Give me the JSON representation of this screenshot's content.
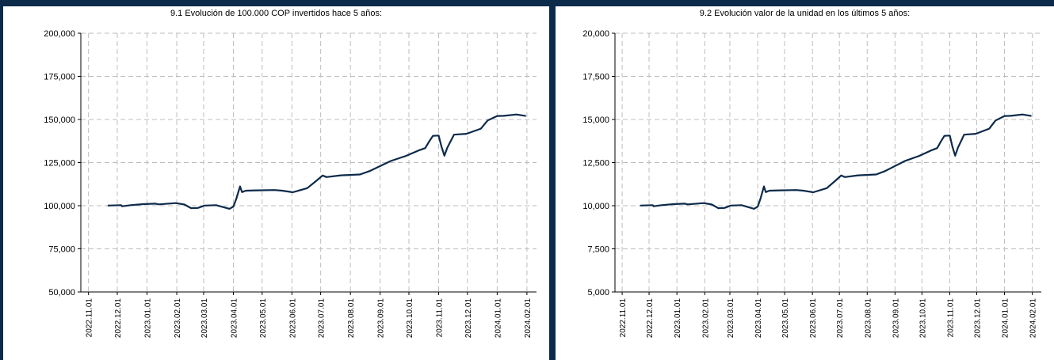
{
  "colors": {
    "frame": "#0c2a4a",
    "series": "#0c2a4a",
    "grid": "#bdbdbd"
  },
  "chart_data": [
    {
      "type": "line",
      "title": "9.1 Evolución de 100.000 COP invertidos hace 5 años:",
      "xlabel": "",
      "ylabel": "",
      "ylim": [
        50000,
        200000
      ],
      "yticks": [
        50000,
        75000,
        100000,
        125000,
        150000,
        175000,
        200000
      ],
      "ytick_labels": [
        "50,000",
        "75,000",
        "100,000",
        "125,000",
        "150,000",
        "175,000",
        "200,000"
      ],
      "xlim": [
        "2022-11-01",
        "2024-02-01"
      ],
      "xticks": [
        "2022-11-01",
        "2022-12-01",
        "2023-01-01",
        "2023-02-01",
        "2023-03-01",
        "2023-04-01",
        "2023-05-01",
        "2023-06-01",
        "2023-07-01",
        "2023-08-01",
        "2023-09-01",
        "2023-10-01",
        "2023-11-01",
        "2023-12-01",
        "2024-01-01",
        "2024-02-01"
      ],
      "xtick_labels": [
        "2022.11.01",
        "2022.12.01",
        "2023.01.01",
        "2023.02.01",
        "2023.03.01",
        "2023.04.01",
        "2023.05.01",
        "2023.06.01",
        "2023.07.01",
        "2023.08.01",
        "2023.09.01",
        "2023.10.01",
        "2023.11.01",
        "2023.12.01",
        "2024.01.01",
        "2024.02.01"
      ],
      "grid": true,
      "series": [
        {
          "x": [
            "2022-11-21",
            "2022-12-05",
            "2022-12-06",
            "2022-12-15",
            "2022-12-28",
            "2023-01-10",
            "2023-01-13",
            "2023-01-31",
            "2023-02-09",
            "2023-02-16",
            "2023-02-23",
            "2023-03-02",
            "2023-03-14",
            "2023-03-28",
            "2023-04-01",
            "2023-04-04",
            "2023-04-08",
            "2023-04-10",
            "2023-04-14",
            "2023-04-25",
            "2023-05-14",
            "2023-05-22",
            "2023-06-02",
            "2023-06-17",
            "2023-06-27",
            "2023-07-03",
            "2023-07-07",
            "2023-07-22",
            "2023-08-11",
            "2023-08-21",
            "2023-09-12",
            "2023-09-28",
            "2023-10-11",
            "2023-10-18",
            "2023-10-22",
            "2023-10-26",
            "2023-11-01",
            "2023-11-04",
            "2023-11-07",
            "2023-11-10",
            "2023-11-17",
            "2023-11-30",
            "2023-12-15",
            "2023-12-22",
            "2024-01-01",
            "2024-01-08",
            "2024-01-21",
            "2024-01-31"
          ],
          "values": [
            100100,
            100300,
            99700,
            100300,
            100900,
            101200,
            100800,
            101500,
            100700,
            98600,
            98700,
            100100,
            100300,
            98200,
            99500,
            103900,
            111200,
            107900,
            108700,
            108900,
            109100,
            108700,
            107800,
            110200,
            114700,
            117500,
            116600,
            117600,
            118100,
            120100,
            125900,
            128900,
            132000,
            133400,
            137100,
            140500,
            140700,
            134100,
            129000,
            133600,
            141200,
            141700,
            144700,
            149400,
            152000,
            152100,
            152900,
            152000
          ]
        }
      ]
    },
    {
      "type": "line",
      "title": "9.2 Evolución valor de la unidad en los últimos 5 años:",
      "xlabel": "",
      "ylabel": "",
      "ylim": [
        5000,
        20000
      ],
      "yticks": [
        5000,
        7500,
        10000,
        12500,
        15000,
        17500,
        20000
      ],
      "ytick_labels": [
        "5,000",
        "7,500",
        "10,000",
        "12,500",
        "15,000",
        "17,500",
        "20,000"
      ],
      "xlim": [
        "2022-11-01",
        "2024-02-01"
      ],
      "xticks": [
        "2022-11-01",
        "2022-12-01",
        "2023-01-01",
        "2023-02-01",
        "2023-03-01",
        "2023-04-01",
        "2023-05-01",
        "2023-06-01",
        "2023-07-01",
        "2023-08-01",
        "2023-09-01",
        "2023-10-01",
        "2023-11-01",
        "2023-12-01",
        "2024-01-01",
        "2024-02-01"
      ],
      "xtick_labels": [
        "2022.11.01",
        "2022.12.01",
        "2023.01.01",
        "2023.02.01",
        "2023.03.01",
        "2023.04.01",
        "2023.05.01",
        "2023.06.01",
        "2023.07.01",
        "2023.08.01",
        "2023.09.01",
        "2023.10.01",
        "2023.11.01",
        "2023.12.01",
        "2024.01.01",
        "2024.02.01"
      ],
      "grid": true,
      "series": [
        {
          "x": [
            "2022-11-21",
            "2022-12-05",
            "2022-12-06",
            "2022-12-15",
            "2022-12-28",
            "2023-01-10",
            "2023-01-13",
            "2023-01-31",
            "2023-02-09",
            "2023-02-16",
            "2023-02-23",
            "2023-03-02",
            "2023-03-14",
            "2023-03-28",
            "2023-04-01",
            "2023-04-04",
            "2023-04-08",
            "2023-04-10",
            "2023-04-14",
            "2023-04-25",
            "2023-05-14",
            "2023-05-22",
            "2023-06-02",
            "2023-06-17",
            "2023-06-27",
            "2023-07-03",
            "2023-07-07",
            "2023-07-22",
            "2023-08-11",
            "2023-08-21",
            "2023-09-12",
            "2023-09-28",
            "2023-10-11",
            "2023-10-18",
            "2023-10-22",
            "2023-10-26",
            "2023-11-01",
            "2023-11-04",
            "2023-11-07",
            "2023-11-10",
            "2023-11-17",
            "2023-11-30",
            "2023-12-15",
            "2023-12-22",
            "2024-01-01",
            "2024-01-08",
            "2024-01-21",
            "2024-01-31"
          ],
          "values": [
            10010,
            10030,
            9970,
            10030,
            10090,
            10120,
            10080,
            10150,
            10070,
            9860,
            9870,
            10010,
            10030,
            9820,
            9950,
            10390,
            11120,
            10790,
            10870,
            10890,
            10910,
            10870,
            10780,
            11020,
            11470,
            11750,
            11660,
            11760,
            11810,
            12010,
            12590,
            12890,
            13200,
            13340,
            13710,
            14050,
            14070,
            13410,
            12900,
            13360,
            14120,
            14170,
            14470,
            14940,
            15200,
            15210,
            15290,
            15200
          ]
        }
      ]
    }
  ]
}
